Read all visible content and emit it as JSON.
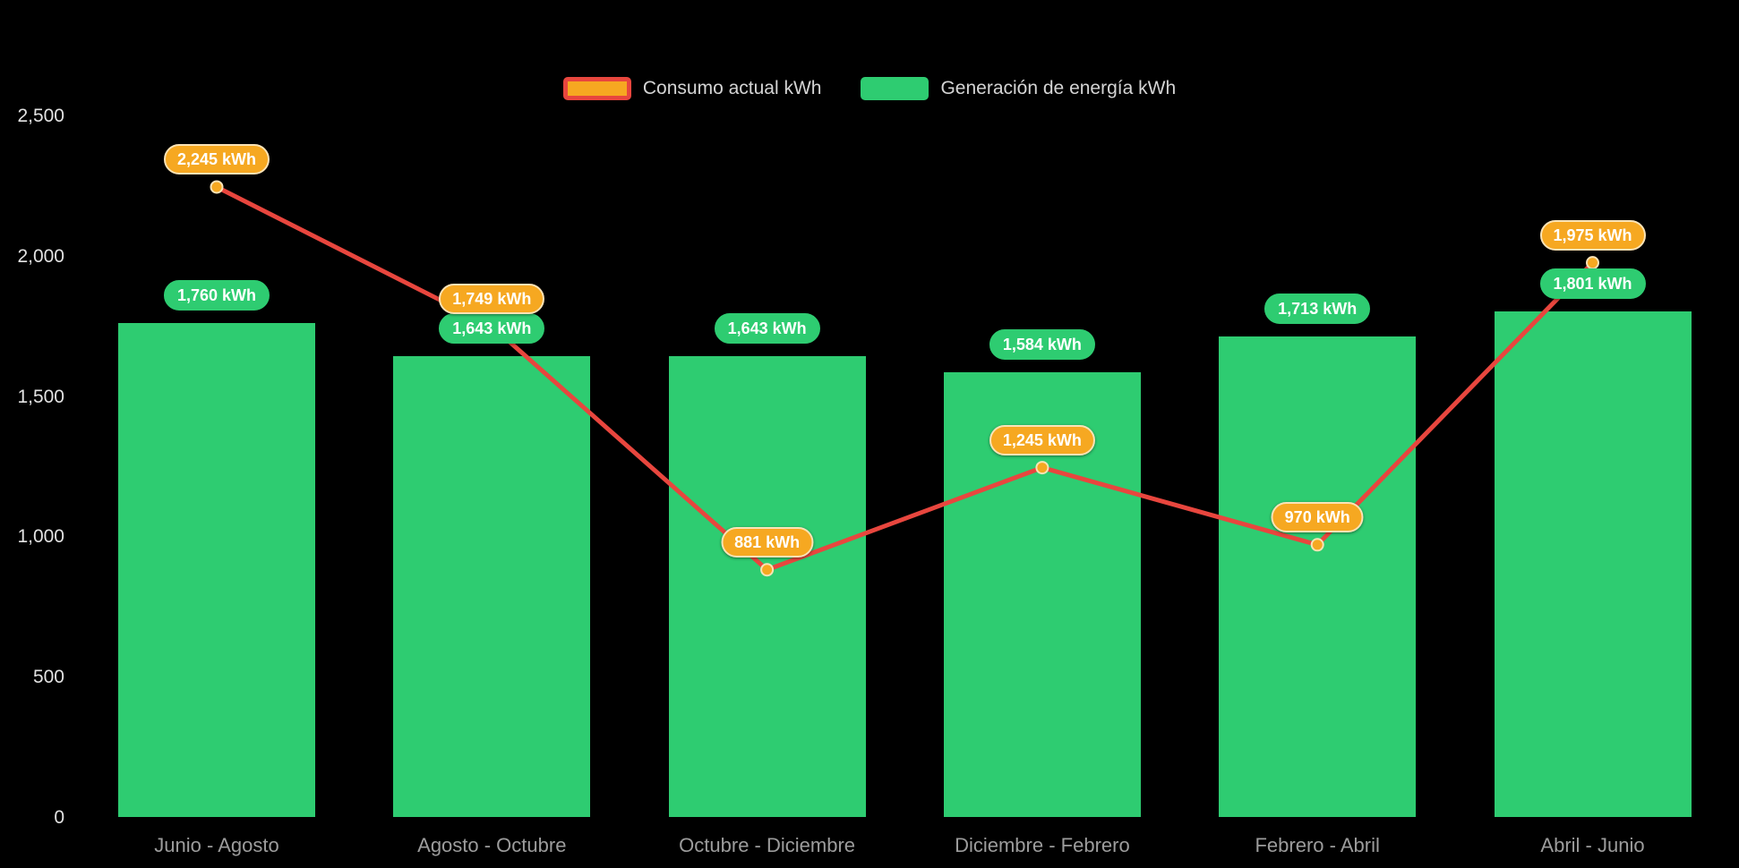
{
  "chart_data": {
    "type": "combo-bar-line",
    "categories": [
      "Junio - Agosto",
      "Agosto - Octubre",
      "Octubre - Diciembre",
      "Diciembre - Febrero",
      "Febrero - Abril",
      "Abril - Junio"
    ],
    "series": [
      {
        "id": "consumo",
        "name": "Consumo actual kWh",
        "type": "line",
        "values": [
          2245,
          1749,
          881,
          1245,
          970,
          1975
        ],
        "labels": [
          "2,245 kWh",
          "1,749 kWh",
          "881 kWh",
          "1,245 kWh",
          "970 kWh",
          "1,975 kWh"
        ],
        "line_color": "#e8463e",
        "marker_fill": "#f6a821",
        "marker_stroke": "#fbe3b6",
        "label_bg": "#f6a821",
        "label_border": "#fbe3b6",
        "label_text_color": "#ffffff",
        "legend_swatch_fill": "#f6a821",
        "legend_swatch_border": "#e8463e"
      },
      {
        "id": "generacion",
        "name": "Generación de energía kWh",
        "type": "bar",
        "values": [
          1760,
          1643,
          1643,
          1584,
          1713,
          1801
        ],
        "labels": [
          "1,760 kWh",
          "1,643 kWh",
          "1,643 kWh",
          "1,584 kWh",
          "1,713 kWh",
          "1,801 kWh"
        ],
        "bar_color": "#2ecc71",
        "label_bg": "#2ecc71",
        "label_border": "#2ecc71",
        "label_text_color": "#ffffff",
        "legend_swatch_fill": "#2ecc71",
        "legend_swatch_border": "#2ecc71"
      }
    ],
    "ylim": [
      0,
      2500
    ],
    "y_ticks": [
      {
        "value": 0,
        "label": "0"
      },
      {
        "value": 500,
        "label": "500"
      },
      {
        "value": 1000,
        "label": "1,000"
      },
      {
        "value": 1500,
        "label": "1,500"
      },
      {
        "value": 2000,
        "label": "2,000"
      },
      {
        "value": 2500,
        "label": "2,500"
      }
    ],
    "title": "",
    "xlabel": "",
    "ylabel": "",
    "grid": false,
    "legend_position": "top",
    "background": "#000000",
    "axis_text_color": "#e2e2e2",
    "category_text_color": "#9c9c9c",
    "legend_text_color": "#d4d4d4"
  }
}
